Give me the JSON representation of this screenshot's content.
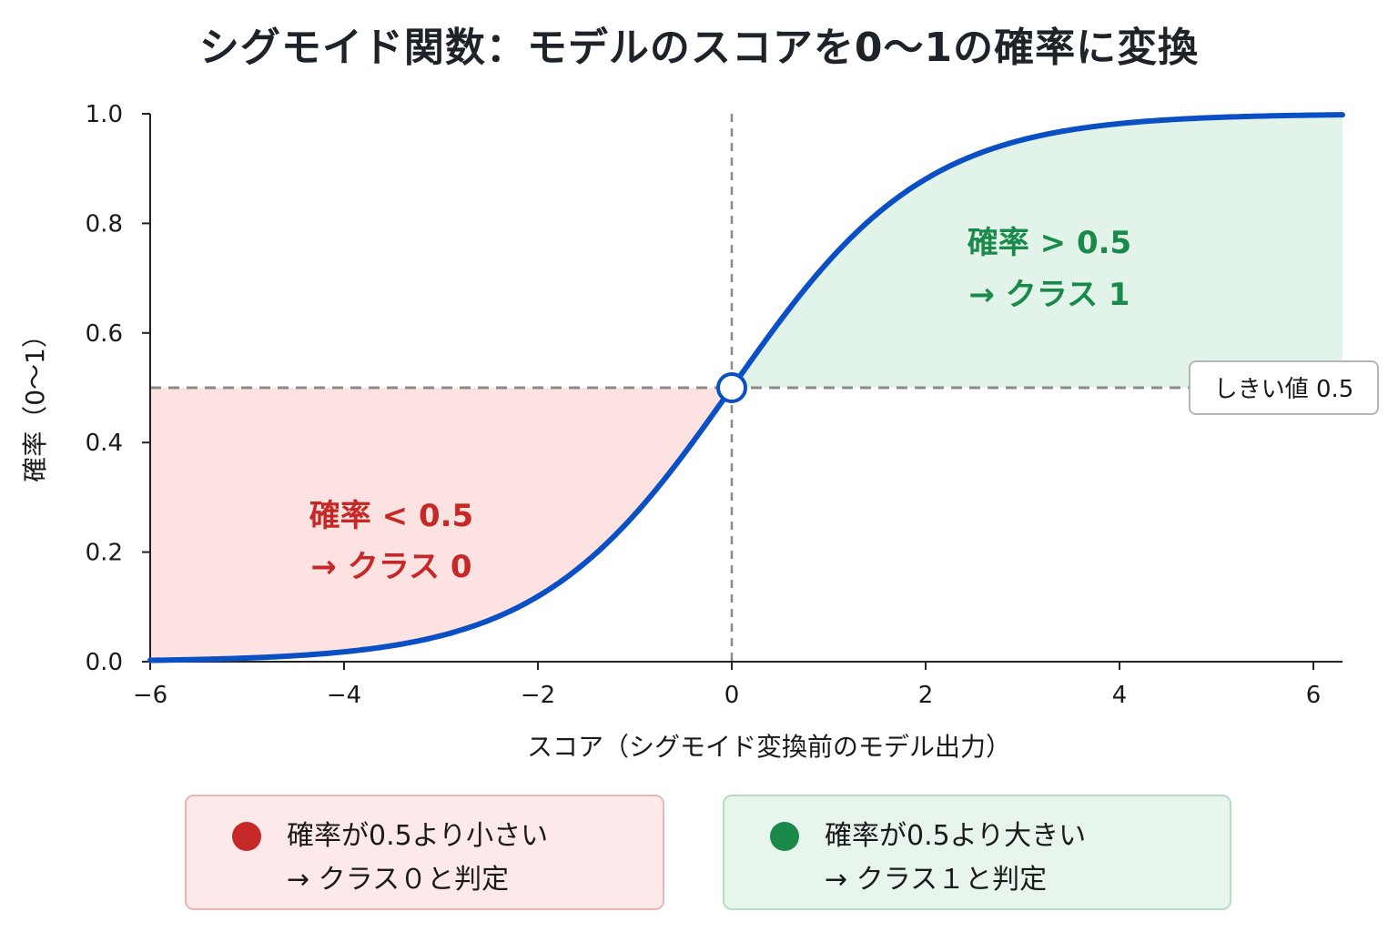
{
  "title": "シグモイド関数：モデルのスコアを0〜1の確率に変換",
  "chart_data": {
    "type": "line",
    "function": "sigmoid",
    "xlabel": "スコア（シグモイド変換前のモデル出力）",
    "ylabel": "確率（0〜1）",
    "xlim": [
      -6,
      6.3
    ],
    "ylim": [
      0,
      1
    ],
    "x_ticks": [
      "−6",
      "−4",
      "−2",
      "0",
      "2",
      "4",
      "6"
    ],
    "x_tick_values": [
      -6,
      -4,
      -2,
      0,
      2,
      4,
      6
    ],
    "y_ticks": [
      "0.0",
      "0.2",
      "0.4",
      "0.6",
      "0.8",
      "1.0"
    ],
    "y_tick_values": [
      0,
      0.2,
      0.4,
      0.6,
      0.8,
      1.0
    ],
    "series": [
      {
        "x": [
          -6,
          -5,
          -4,
          -3,
          -2,
          -1,
          0,
          1,
          2,
          3,
          4,
          5,
          6
        ],
        "y": [
          0.0025,
          0.0067,
          0.018,
          0.047,
          0.119,
          0.269,
          0.5,
          0.731,
          0.881,
          0.953,
          0.982,
          0.993,
          0.9975
        ],
        "color": "#0a4fc4"
      }
    ],
    "threshold": {
      "value": 0.5,
      "label": "しきい値 0.5"
    },
    "marker": {
      "x": 0,
      "y": 0.5
    },
    "regions": [
      {
        "line1": "確率 < 0.5",
        "line2": "→ クラス 0",
        "color": "#c62828",
        "fill": "#fde2e2"
      },
      {
        "line1": "確率 > 0.5",
        "line2": "→ クラス 1",
        "color": "#1a8a4a",
        "fill": "#e2f3ea"
      }
    ]
  },
  "legend": [
    {
      "line1": "確率が0.5より小さい",
      "line2": "→ クラス０と判定",
      "dot_color": "#c62828",
      "bg": "#fde9e9",
      "border": "#e8b6b6"
    },
    {
      "line1": "確率が0.5より大きい",
      "line2": "→ クラス１と判定",
      "dot_color": "#1a8a4a",
      "bg": "#e7f5ec",
      "border": "#b5dcc4"
    }
  ]
}
